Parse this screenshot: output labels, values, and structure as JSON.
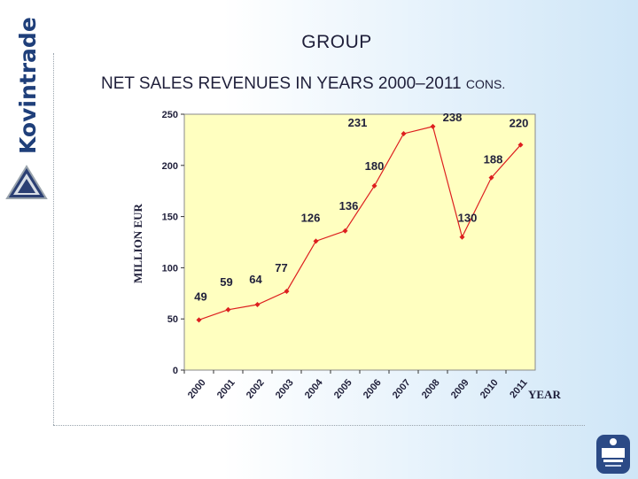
{
  "brand": {
    "name": "Kovintrade",
    "logo_icon": "kovintrade-triangle-logo-icon",
    "cert_icon": "tuv-certification-badge-icon"
  },
  "header": {
    "title": "GROUP",
    "subtitle": "NET SALES REVENUES IN YEARS 2000–2011",
    "subtitle_suffix": "CONS."
  },
  "chart_data": {
    "type": "line",
    "title": "NET SALES REVENUES IN YEARS 2000–2011 CONS.",
    "xlabel": "YEAR",
    "ylabel": "MILLION EUR",
    "categories": [
      "2000",
      "2001",
      "2002",
      "2003",
      "2004",
      "2005",
      "2006",
      "2007",
      "2008",
      "2009",
      "2010",
      "2011"
    ],
    "values": [
      49,
      59,
      64,
      77,
      126,
      136,
      180,
      231,
      238,
      130,
      188,
      220
    ],
    "data_labels": [
      "49",
      "59",
      "64",
      "77",
      "126",
      "136",
      "180",
      "231",
      "238",
      "130",
      "188",
      "220"
    ],
    "ylim": [
      0,
      250
    ],
    "yticks": [
      "0",
      "50",
      "100",
      "150",
      "200",
      "250"
    ],
    "grid": false,
    "colors": {
      "plot_bg": "#ffffc0",
      "line": "#dd1f1f",
      "marker": "#dd1f1f"
    }
  }
}
